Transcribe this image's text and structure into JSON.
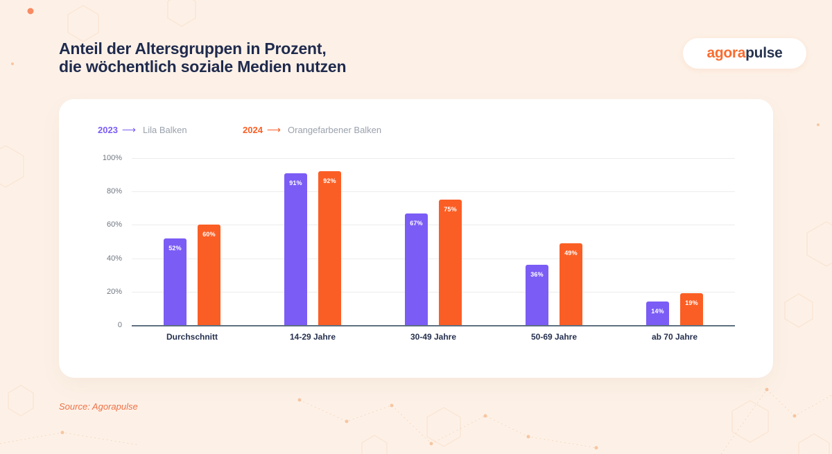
{
  "header": {
    "title_line1": "Anteil der Altersgruppen in Prozent,",
    "title_line2": "die wöchentlich soziale Medien nutzen",
    "logo_part1": "agora",
    "logo_part2": "pulse"
  },
  "legend": [
    {
      "year": "2023",
      "arrow": "⟶",
      "label": "Lila Balken"
    },
    {
      "year": "2024",
      "arrow": "⟶",
      "label": "Orangefarbener Balken"
    }
  ],
  "footer": {
    "source": "Source: Agorapulse"
  },
  "colors": {
    "background": "#fdf1e7",
    "card": "#ffffff",
    "navy": "#1f2a4d",
    "purple": "#7b5cf5",
    "orange": "#fb5e24",
    "legend_gray": "#9aa1ac",
    "axis": "#5d6f80",
    "grid": "#ececec",
    "source_orange": "#ef7146"
  },
  "chart_data": {
    "type": "bar",
    "title": "Anteil der Altersgruppen in Prozent, die wöchentlich soziale Medien nutzen",
    "categories": [
      "Durchschnitt",
      "14-29 Jahre",
      "30-49 Jahre",
      "50-69 Jahre",
      "ab 70 Jahre"
    ],
    "series": [
      {
        "name": "2023",
        "color": "#7b5cf5",
        "values": [
          52,
          91,
          67,
          36,
          14
        ],
        "labels": [
          "52%",
          "91%",
          "67%",
          "36%",
          "14%"
        ]
      },
      {
        "name": "2024",
        "color": "#fb5e24",
        "values": [
          60,
          92,
          75,
          49,
          19
        ],
        "labels": [
          "60%",
          "92%",
          "75%",
          "49%",
          "19%"
        ]
      }
    ],
    "xlabel": "",
    "ylabel": "",
    "ylim": [
      0,
      100
    ],
    "yticks": [
      {
        "label": "100%",
        "value": 100
      },
      {
        "label": "80%",
        "value": 80
      },
      {
        "label": "60%",
        "value": 60
      },
      {
        "label": "40%",
        "value": 40
      },
      {
        "label": "20%",
        "value": 20
      },
      {
        "label": "0",
        "value": 0
      }
    ],
    "grid": true,
    "legend_position": "top-left"
  }
}
